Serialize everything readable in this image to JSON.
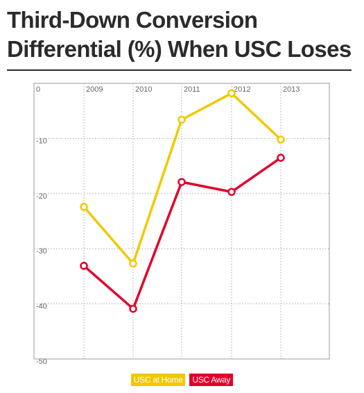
{
  "header": {
    "title_line1": "Third-Down Conversion",
    "title_line2": "Differential (%) When USC Loses"
  },
  "chart_data": {
    "type": "line",
    "title": "Third-Down Conversion Differential (%) When USC Loses",
    "xlabel": "",
    "ylabel": "",
    "categories": [
      "2009",
      "2010",
      "2011",
      "2012",
      "2013"
    ],
    "x_origin_label": "0",
    "yticks": [
      0,
      -10,
      -20,
      -30,
      -40,
      -50
    ],
    "ytick_labels": [
      "",
      "-10",
      "-20",
      "-30",
      "-40",
      "-50"
    ],
    "ylim": [
      -50,
      0
    ],
    "grid": true,
    "legend": "bottom-center",
    "series": [
      {
        "name": "USC at Home",
        "color": "#f2c800",
        "values": [
          -22.4,
          -32.7,
          -6.6,
          -1.8,
          -10.2
        ]
      },
      {
        "name": "USC Away",
        "color": "#e2002b",
        "values": [
          -33.1,
          -40.9,
          -17.9,
          -19.7,
          -13.5
        ]
      }
    ]
  }
}
